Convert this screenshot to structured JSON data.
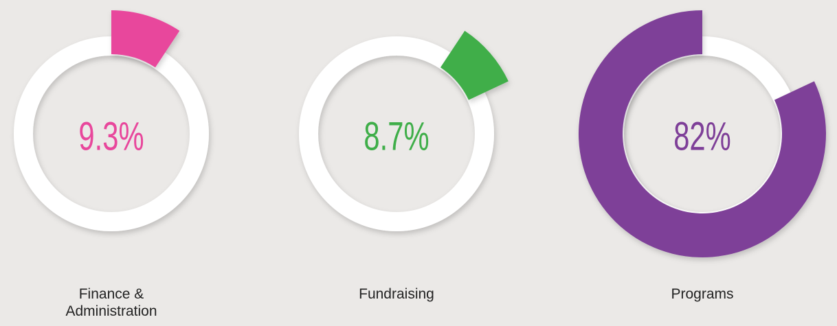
{
  "chart_data": {
    "type": "donut",
    "categories": [
      "Finance & Administration",
      "Fundraising",
      "Programs"
    ],
    "values": [
      9.3,
      8.7,
      82
    ],
    "value_labels": [
      "9.3%",
      "8.7%",
      "82%"
    ],
    "colors": [
      "#e8479c",
      "#3fae49",
      "#7e3f98"
    ]
  }
}
